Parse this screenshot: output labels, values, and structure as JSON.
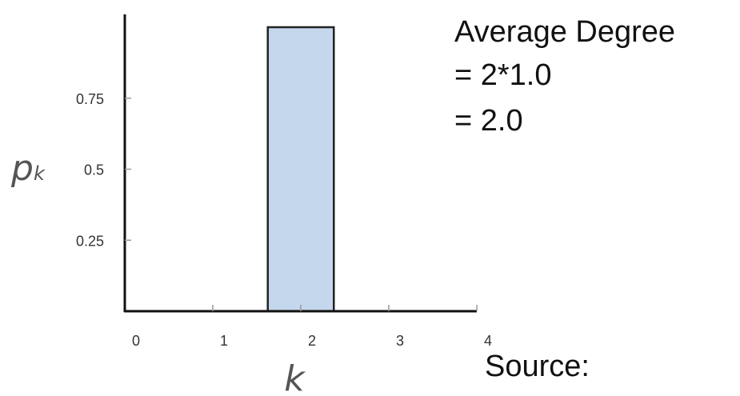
{
  "chart_data": {
    "type": "bar",
    "x_ticks": [
      "0",
      "1",
      "2",
      "3",
      "4"
    ],
    "y_ticks": [
      "0.25",
      "0.5",
      "0.75"
    ],
    "bars": [
      {
        "x": 2,
        "value": 1.0,
        "width": 0.75
      }
    ],
    "xlabel": "k",
    "ylabel": "p",
    "ylabel_subscript": "k",
    "xlim": [
      0,
      4
    ],
    "ylim": [
      0,
      1.0
    ],
    "grid": false,
    "bar_color": "#c5d7ec",
    "bar_edge_color": "#222222"
  },
  "annotations": {
    "line1": "Average Degree",
    "line2": "= 2*1.0",
    "line3": "= 2.0",
    "source": "Source:"
  }
}
